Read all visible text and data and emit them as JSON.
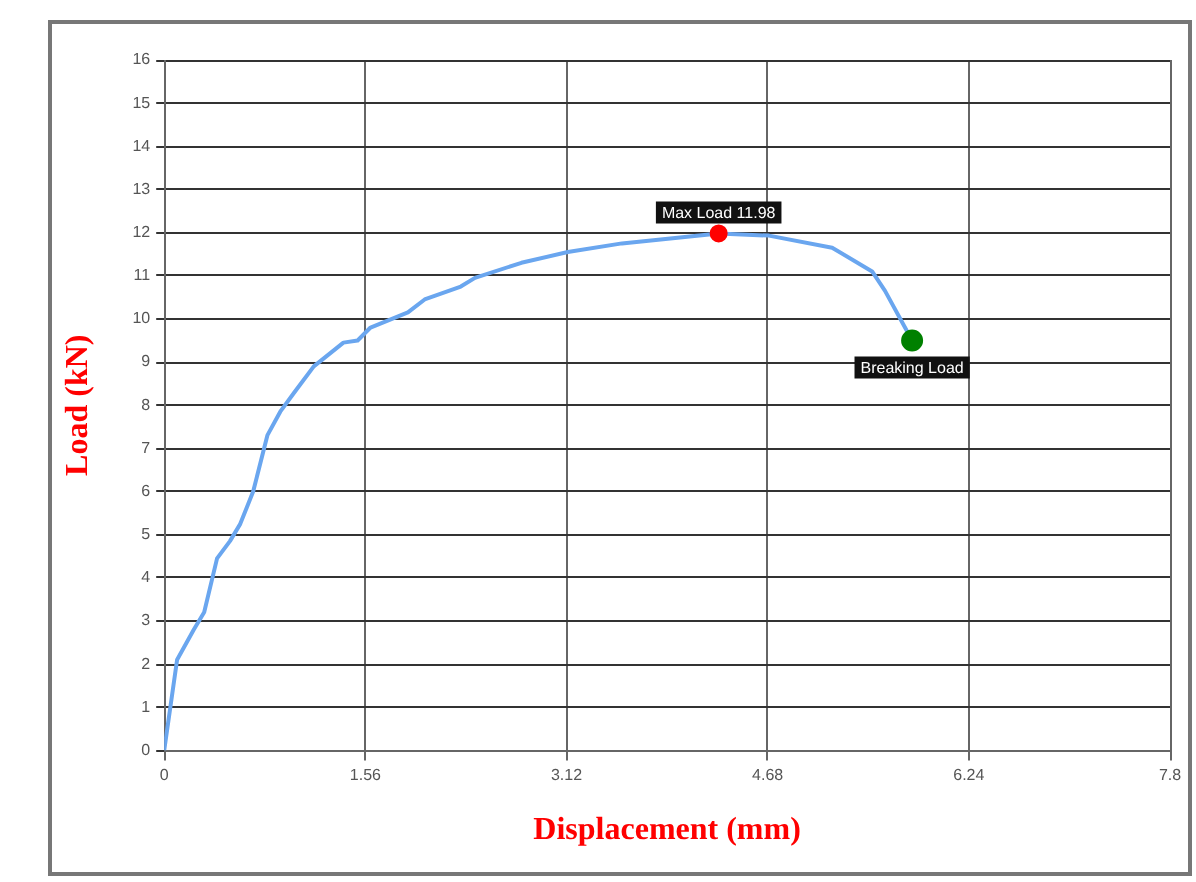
{
  "chart_data": {
    "type": "line",
    "xlabel": "Displacement (mm)",
    "ylabel": "Load (kN)",
    "xlim": [
      0,
      7.8
    ],
    "xticks": [
      0,
      1.56,
      3.12,
      4.68,
      6.24,
      7.8
    ],
    "ylim": [
      0,
      16
    ],
    "yticks": [
      0,
      1,
      2,
      3,
      4,
      5,
      6,
      7,
      8,
      9,
      10,
      11,
      12,
      13,
      14,
      15,
      16
    ],
    "grid": true,
    "marker": "none",
    "line_style": "solid",
    "series": [
      {
        "color": "#6aa6ef",
        "x": [
          0,
          0.1,
          0.23,
          0.31,
          0.41,
          0.51,
          0.59,
          0.69,
          0.8,
          0.9,
          1.01,
          1.16,
          1.39,
          1.5,
          1.6,
          1.89,
          2.02,
          2.3,
          2.41,
          2.77,
          3.13,
          3.55,
          4.3,
          4.69,
          5.18,
          5.49,
          5.59,
          5.8
        ],
        "values": [
          0,
          2.1,
          2.8,
          3.2,
          4.45,
          4.85,
          5.25,
          6.0,
          7.3,
          7.85,
          8.3,
          8.9,
          9.45,
          9.5,
          9.8,
          10.15,
          10.45,
          10.75,
          10.95,
          11.3,
          11.55,
          11.75,
          11.98,
          11.93,
          11.65,
          11.1,
          10.65,
          9.5
        ]
      },
      {
        "type": "scatter",
        "color": "#ff0000",
        "marker": "circle",
        "x": [
          4.3
        ],
        "values": [
          11.98
        ]
      },
      {
        "type": "scatter",
        "color": "#008000",
        "marker": "circle",
        "x": [
          5.8
        ],
        "values": [
          9.5
        ]
      }
    ],
    "annotations": [
      {
        "text": "Max Load 11.98",
        "x": 4.3,
        "y": 11.98
      },
      {
        "text": "Breaking Load",
        "x": 5.8,
        "y": 9.5
      }
    ]
  }
}
